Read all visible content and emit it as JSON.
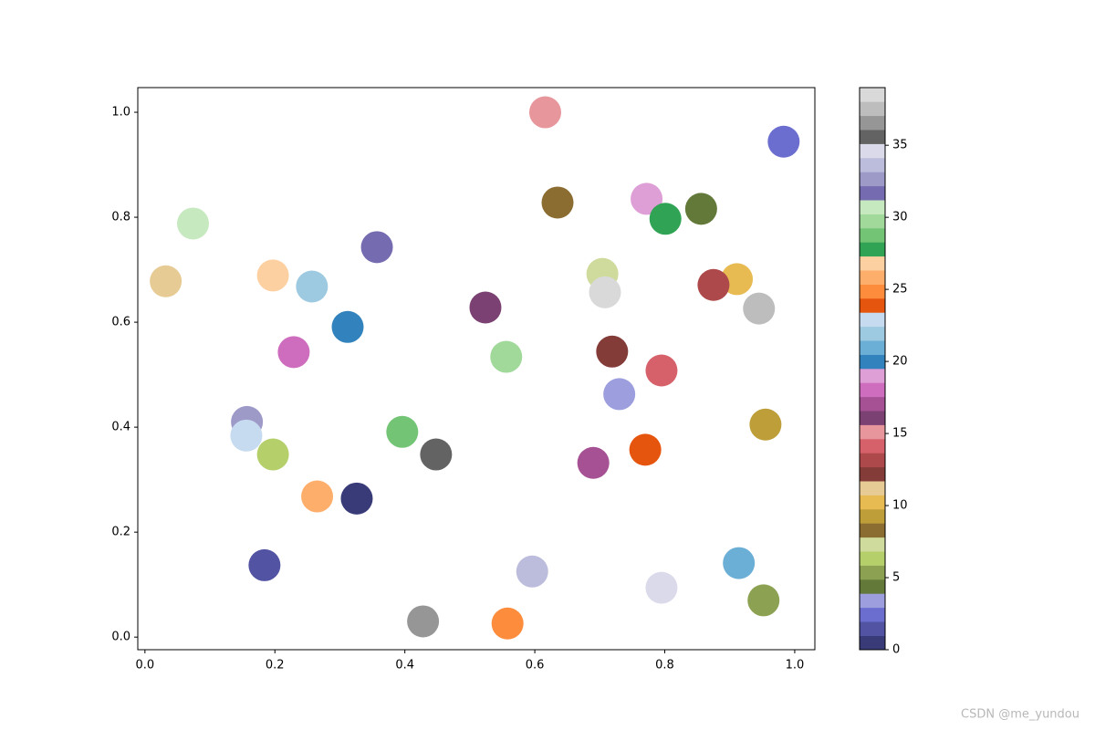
{
  "chart_data": {
    "type": "scatter",
    "x": [
      0.616,
      0.983,
      0.635,
      0.772,
      0.801,
      0.856,
      0.074,
      0.357,
      0.032,
      0.197,
      0.257,
      0.704,
      0.708,
      0.911,
      0.875,
      0.945,
      0.524,
      0.312,
      0.229,
      0.556,
      0.719,
      0.795,
      0.73,
      0.157,
      0.156,
      0.396,
      0.197,
      0.448,
      0.955,
      0.69,
      0.77,
      0.265,
      0.326,
      0.184,
      0.596,
      0.795,
      0.914,
      0.952,
      0.428,
      0.558
    ],
    "y": [
      1.0,
      0.944,
      0.828,
      0.835,
      0.797,
      0.816,
      0.788,
      0.743,
      0.678,
      0.689,
      0.668,
      0.692,
      0.657,
      0.682,
      0.671,
      0.626,
      0.628,
      0.591,
      0.543,
      0.534,
      0.544,
      0.508,
      0.463,
      0.41,
      0.384,
      0.391,
      0.348,
      0.348,
      0.405,
      0.332,
      0.357,
      0.268,
      0.264,
      0.137,
      0.125,
      0.094,
      0.141,
      0.07,
      0.03,
      0.026
    ],
    "c": [
      15,
      2,
      8,
      19,
      28,
      4,
      31,
      32,
      11,
      27,
      22,
      7,
      39,
      10,
      13,
      38,
      16,
      20,
      18,
      30,
      12,
      14,
      3,
      33,
      23,
      29,
      6,
      36,
      9,
      17,
      24,
      26,
      0,
      1,
      34,
      35,
      21,
      5,
      37,
      25
    ],
    "colormap": [
      "#393b79",
      "#5254a3",
      "#6b6ecf",
      "#9c9ede",
      "#637939",
      "#8ca252",
      "#b5cf6b",
      "#cedb9c",
      "#8c6d31",
      "#bd9e39",
      "#e7ba52",
      "#e7cb94",
      "#843c39",
      "#ad494a",
      "#d6616b",
      "#e7969c",
      "#7b4173",
      "#a55194",
      "#ce6dbd",
      "#de9ed6",
      "#3182bd",
      "#6baed6",
      "#9ecae1",
      "#c6dbef",
      "#e6550d",
      "#fd8d3c",
      "#fdae6b",
      "#fdd0a2",
      "#31a354",
      "#74c476",
      "#a1d99b",
      "#c7e9c0",
      "#756bb1",
      "#9e9ac8",
      "#bcbddc",
      "#dadaeb",
      "#636363",
      "#969696",
      "#bdbdbd",
      "#d9d9d9"
    ],
    "clim": [
      0,
      39
    ],
    "cticks": [
      0,
      5,
      10,
      15,
      20,
      25,
      30,
      35
    ],
    "xlim": [
      -0.011,
      1.031
    ],
    "ylim": [
      -0.024,
      1.047
    ],
    "xticks": [
      {
        "value": 0,
        "label": "0.0"
      },
      {
        "value": 0.2,
        "label": "0.2"
      },
      {
        "value": 0.4,
        "label": "0.4"
      },
      {
        "value": 0.6,
        "label": "0.6"
      },
      {
        "value": 0.8,
        "label": "0.8"
      },
      {
        "value": 1,
        "label": "1.0"
      }
    ],
    "yticks": [
      {
        "value": 0,
        "label": "0.0"
      },
      {
        "value": 0.2,
        "label": "0.2"
      },
      {
        "value": 0.4,
        "label": "0.4"
      },
      {
        "value": 0.6,
        "label": "0.6"
      },
      {
        "value": 0.8,
        "label": "0.8"
      },
      {
        "value": 1,
        "label": "1.0"
      }
    ],
    "watermark": "CSDN @me_yundou"
  }
}
